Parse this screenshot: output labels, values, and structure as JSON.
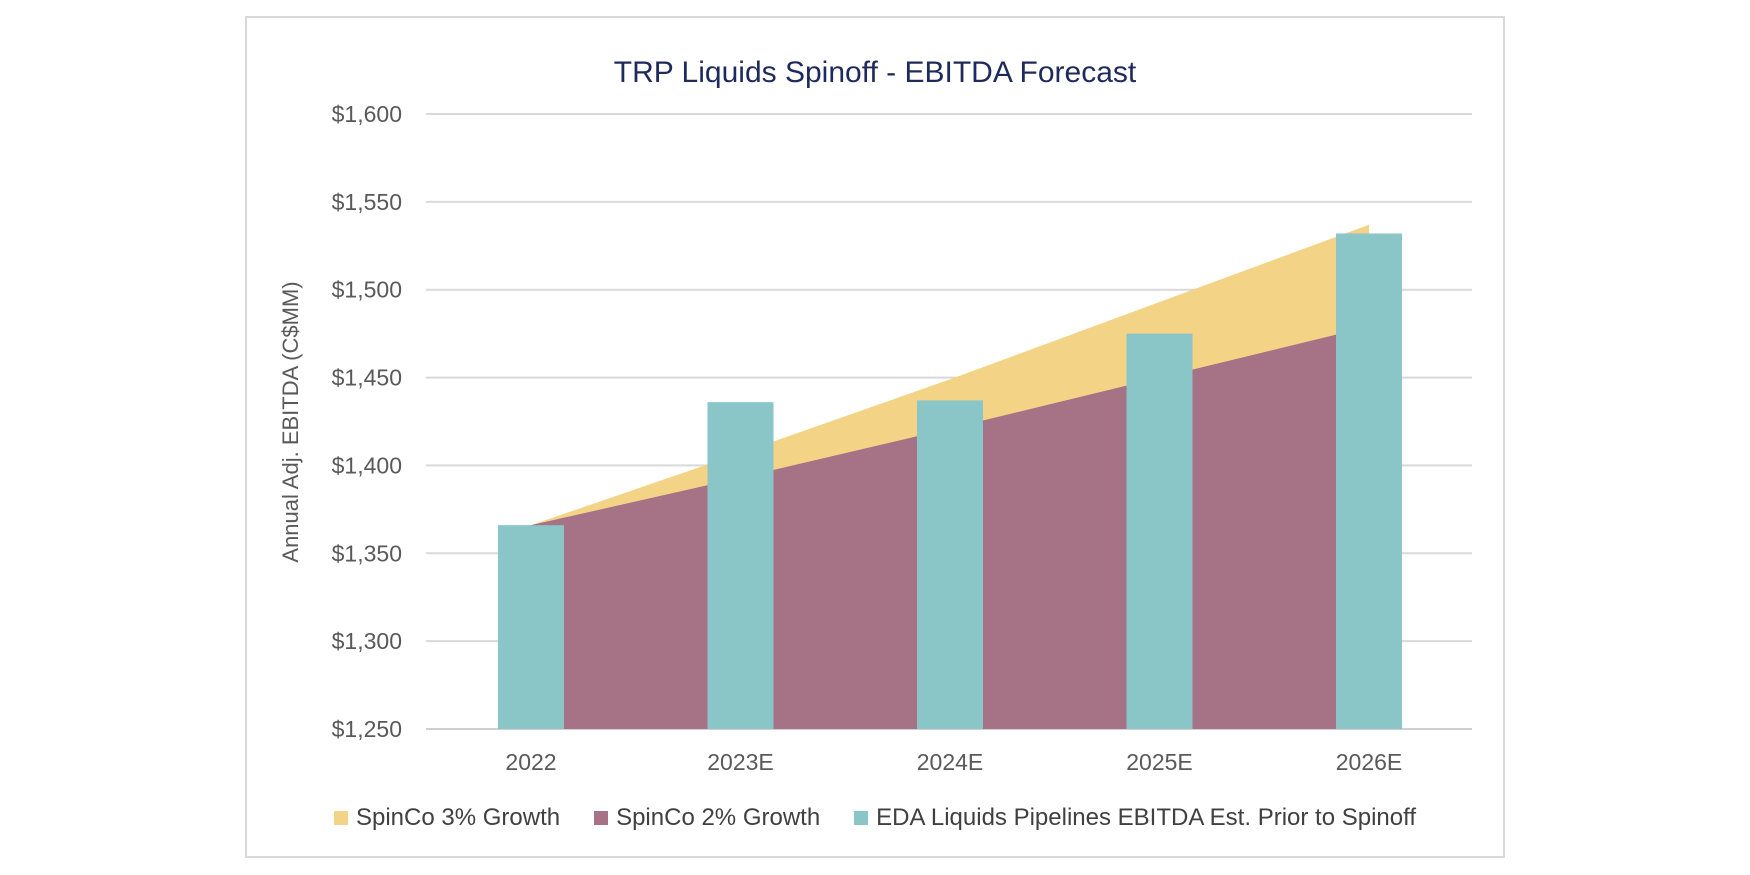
{
  "chart_data": {
    "type": "area+bar",
    "title": "TRP Liquids Spinoff - EBITDA Forecast",
    "xlabel": "",
    "ylabel": "Annual Adj. EBITDA (C$MM)",
    "ylim": [
      1250,
      1600
    ],
    "yticks": [
      1250,
      1300,
      1350,
      1400,
      1450,
      1500,
      1550,
      1600
    ],
    "ytick_labels": [
      "$1,250",
      "$1,300",
      "$1,350",
      "$1,400",
      "$1,450",
      "$1,500",
      "$1,550",
      "$1,600"
    ],
    "categories": [
      "2022",
      "2023E",
      "2024E",
      "2025E",
      "2026E"
    ],
    "grid": true,
    "legend_position": "bottom",
    "series": [
      {
        "name": "SpinCo 3% Growth",
        "type": "area",
        "color": "#f3d487",
        "values": [
          1366,
          1407,
          1449,
          1493,
          1537
        ]
      },
      {
        "name": "SpinCo 2% Growth",
        "type": "area",
        "color": "#a57286",
        "values": [
          1366,
          1393,
          1421,
          1450,
          1479
        ]
      },
      {
        "name": "EDA Liquids Pipelines EBITDA Est. Prior to Spinoff",
        "type": "bar",
        "color": "#8ac5c7",
        "values": [
          1366,
          1436,
          1437,
          1475,
          1532
        ]
      }
    ]
  }
}
